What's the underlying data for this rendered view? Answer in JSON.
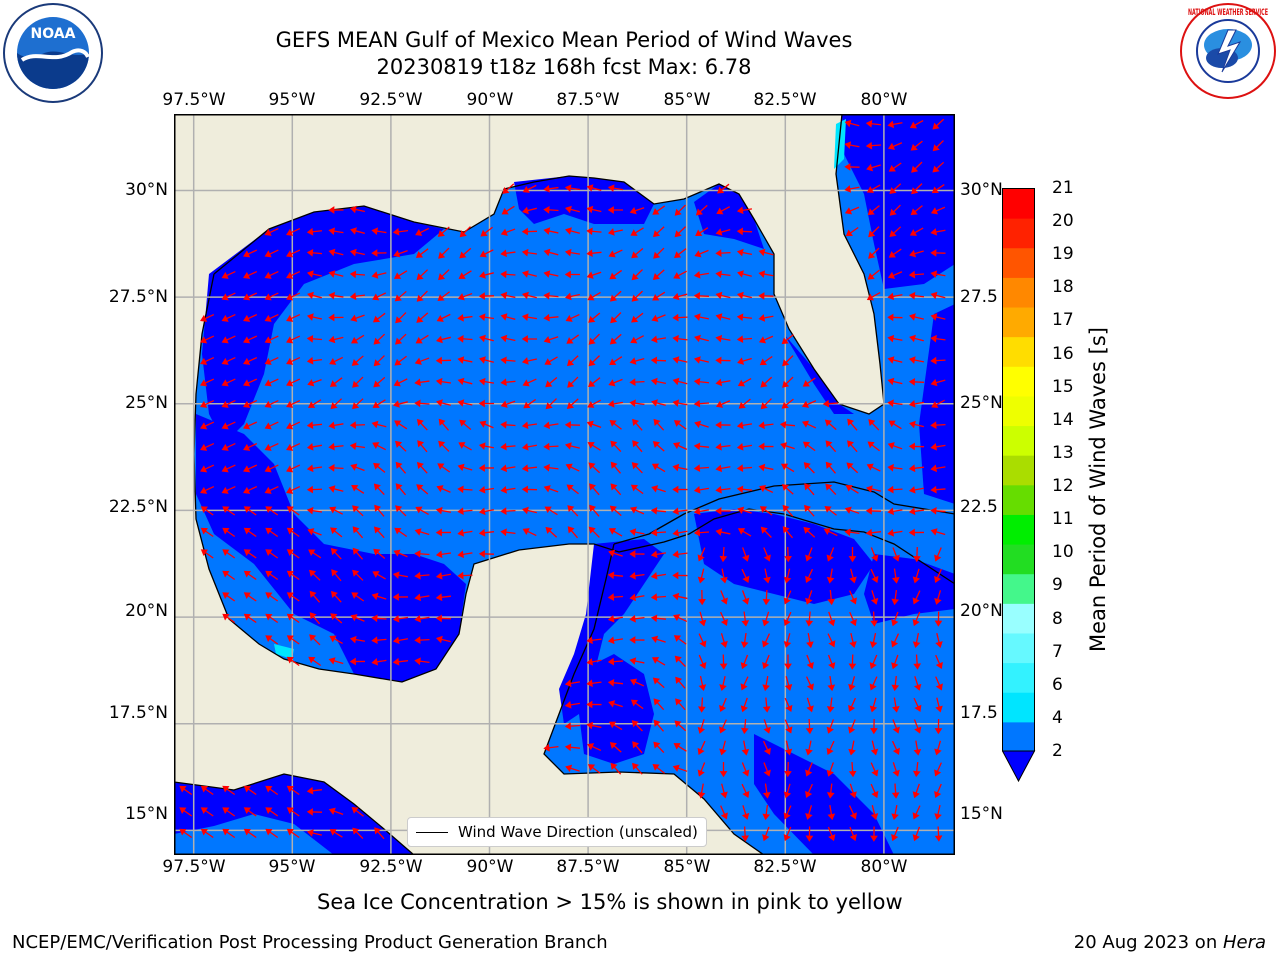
{
  "header": {
    "title_line1": "GEFS MEAN Gulf of Mexico Mean Period of Wind Waves",
    "title_line2": "20230819 t18z 168h fcst   Max: 6.78"
  },
  "logos": {
    "left_name": "NOAA",
    "left_ring_text": "NATIONAL OCEANIC AND ATMOSPHERIC ADMINISTRATION",
    "left_bottom_text": "U.S. DEPARTMENT OF COMMERCE",
    "right_ring_text": "NATIONAL WEATHER SERVICE"
  },
  "map": {
    "lon_labels": [
      "97.5°W",
      "95°W",
      "92.5°W",
      "90°W",
      "87.5°W",
      "85°W",
      "82.5°W",
      "80°W"
    ],
    "lat_labels": [
      "30°N",
      "27.5°N",
      "25°N",
      "22.5°N",
      "20°N",
      "17.5°N",
      "15°N"
    ],
    "right_lat_labels": [
      "30°N",
      "27.5",
      "25°N",
      "22.5",
      "20°N",
      "17.5",
      "15°N"
    ],
    "lon_range": [
      -98,
      -78.2
    ],
    "lat_range": [
      14,
      31.6
    ],
    "land_color": "#efeddc",
    "legend_label": "Wind Wave Direction (unscaled)"
  },
  "colorbar": {
    "label": "Mean Period of Wind Waves [s]",
    "ticks": [
      "2",
      "4",
      "6",
      "7",
      "8",
      "9",
      "10",
      "11",
      "12",
      "13",
      "14",
      "15",
      "16",
      "17",
      "18",
      "19",
      "20",
      "21"
    ],
    "colors": [
      "#0077ff",
      "#00e5ff",
      "#33f2ff",
      "#66f9ff",
      "#99ffff",
      "#44f78b",
      "#22dd22",
      "#00ee00",
      "#66dd00",
      "#aadd00",
      "#ccff00",
      "#eeff00",
      "#ffff00",
      "#ffdd00",
      "#ffaa00",
      "#ff8800",
      "#ff5500",
      "#ff2200",
      "#ff0000"
    ],
    "under_color": "#0000ff"
  },
  "chart_data": {
    "type": "heatmap",
    "title": "GEFS MEAN Gulf of Mexico Mean Period of Wind Waves",
    "variable": "Mean Period of Wind Waves [s]",
    "forecast": "20230819 t18z 168h fcst",
    "max": 6.78,
    "xlim": [
      -98,
      -78.2
    ],
    "ylim": [
      14,
      31.6
    ],
    "levels": [
      2,
      4,
      6,
      7,
      8,
      9,
      10,
      11,
      12,
      13,
      14,
      15,
      16,
      17,
      18,
      19,
      20,
      21
    ]
  },
  "notes": {
    "sea_ice": "Sea Ice Concentration > 15% is shown in pink to yellow"
  },
  "footer": {
    "left": "NCEP/EMC/Verification Post Processing Product Generation Branch",
    "right_prefix": "20 Aug 2023 on ",
    "right_machine": "Hera"
  }
}
